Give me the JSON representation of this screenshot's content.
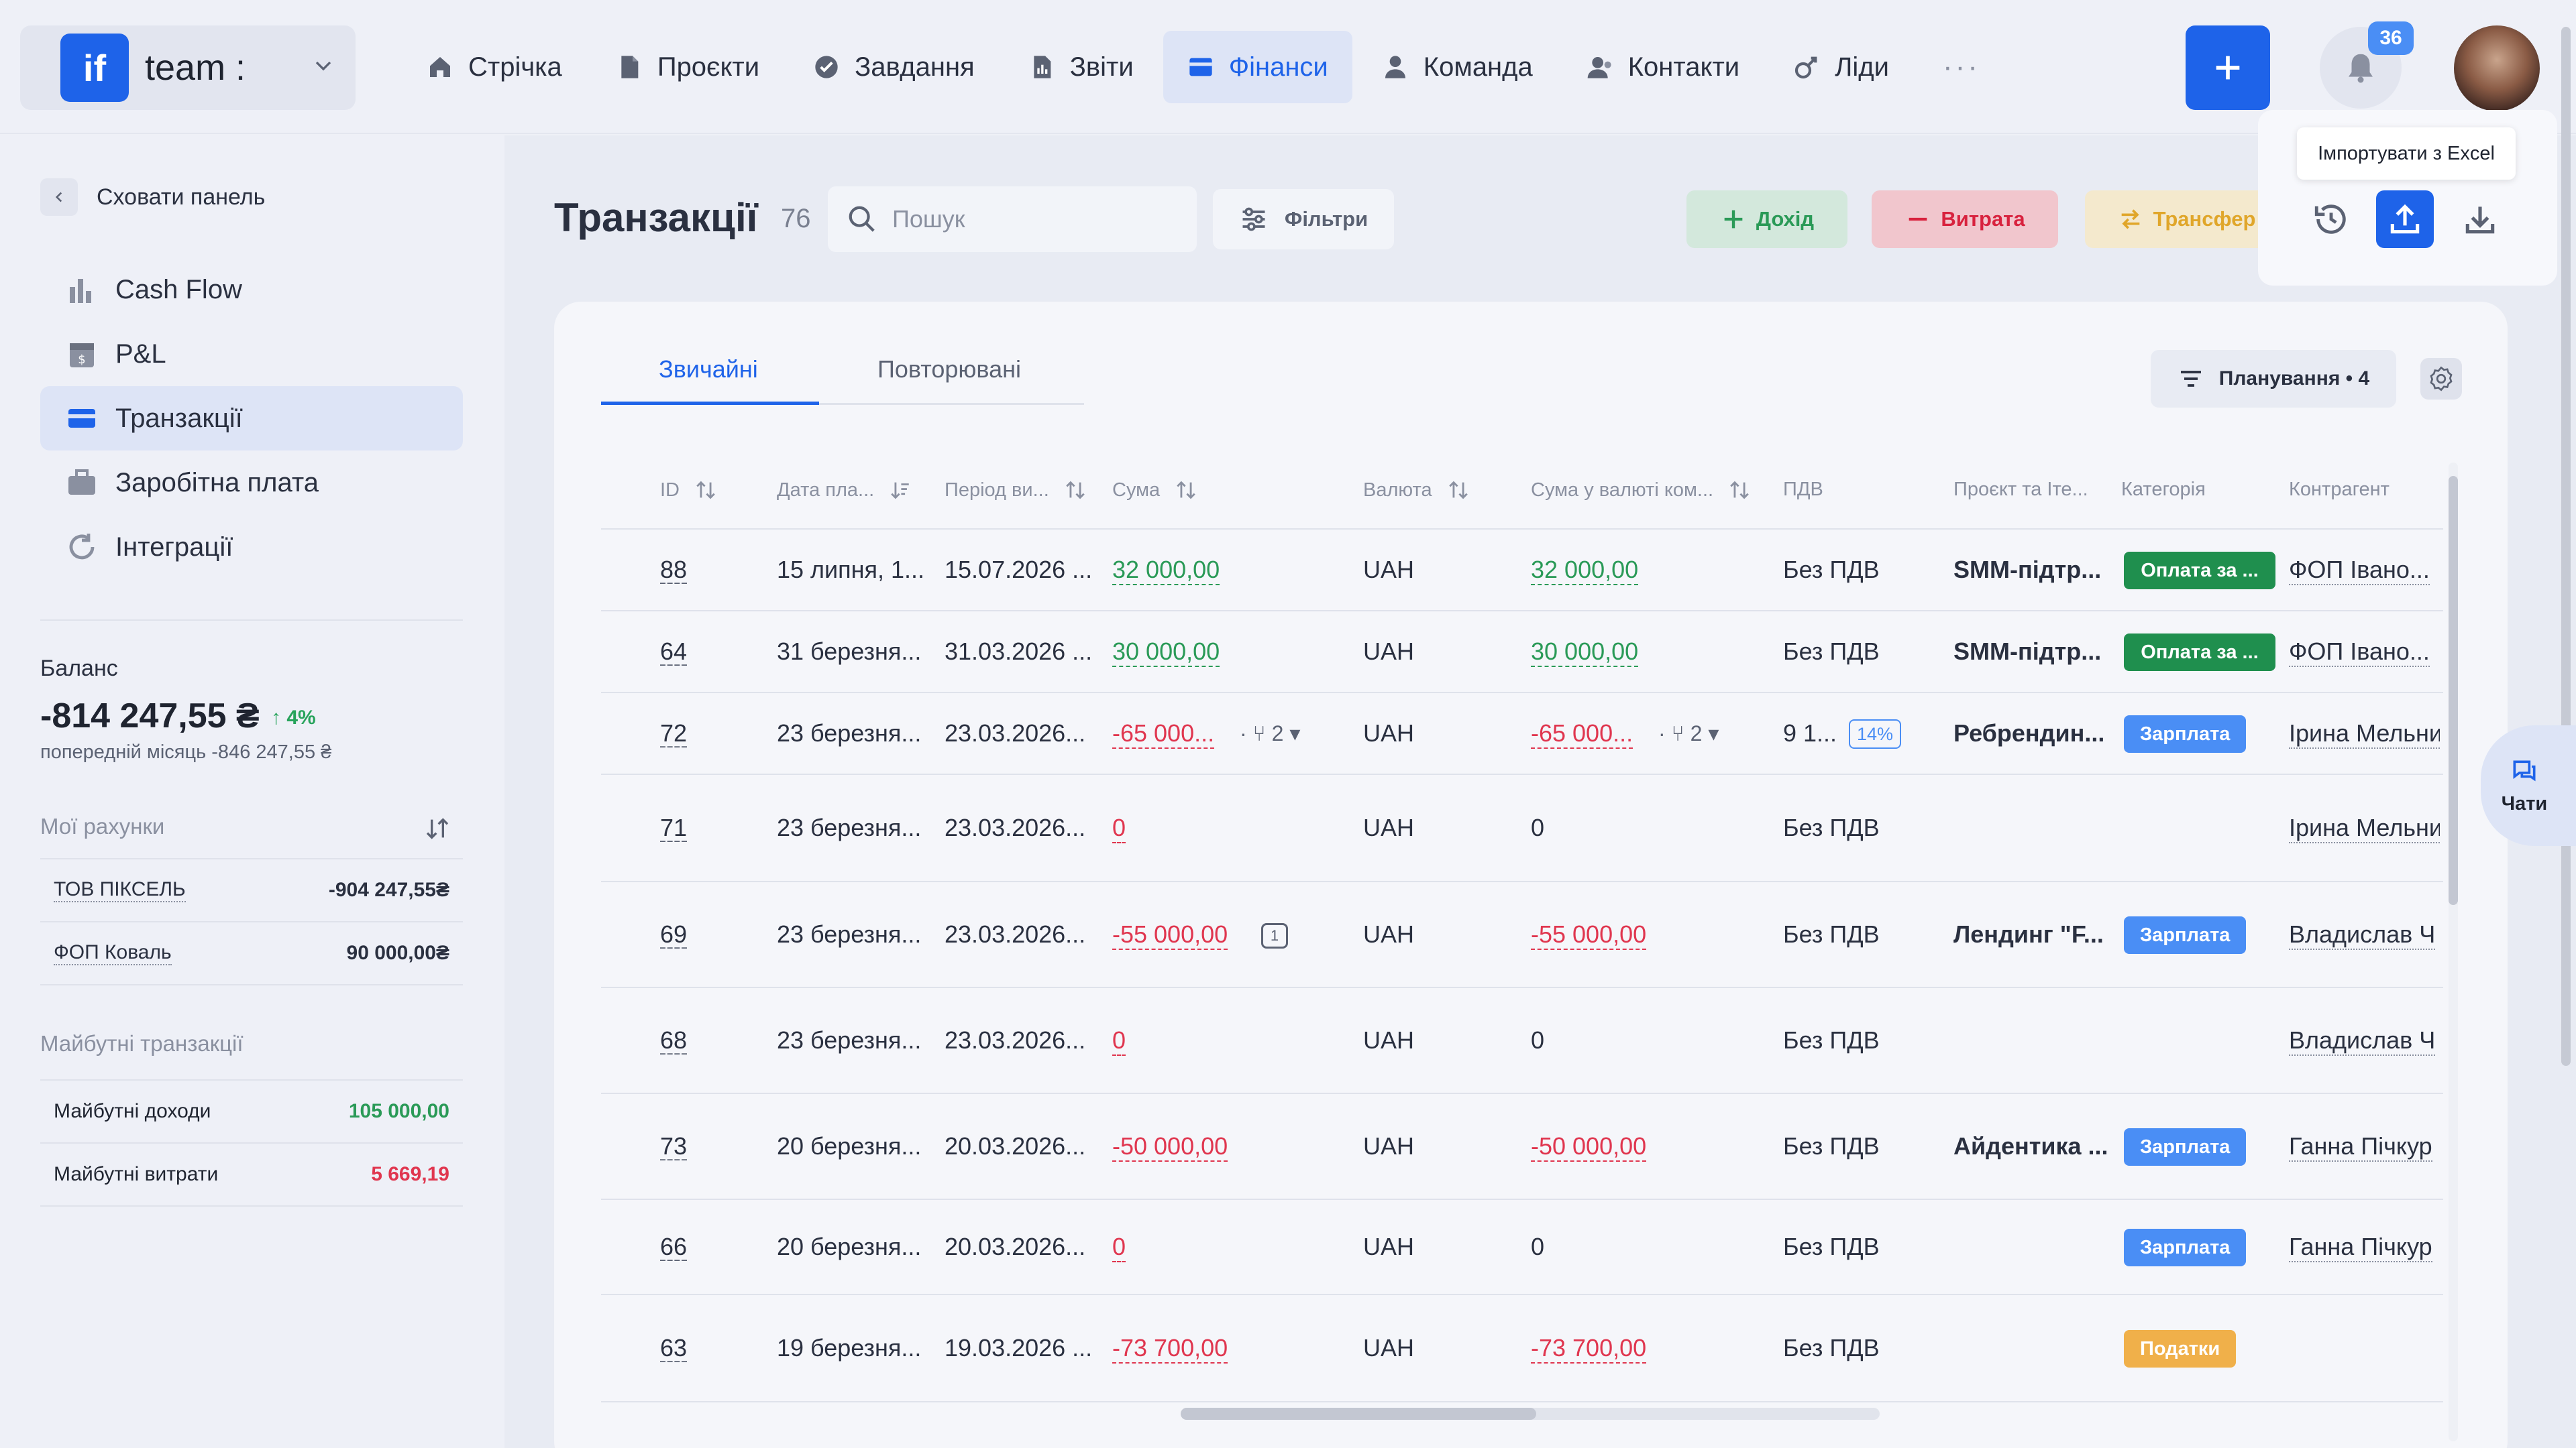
{
  "brand": {
    "logo": "if",
    "name": "team :"
  },
  "nav": [
    {
      "label": "Стрічка",
      "icon": "home-icon"
    },
    {
      "label": "Проєкти",
      "icon": "file-icon"
    },
    {
      "label": "Завдання",
      "icon": "check-circle-icon"
    },
    {
      "label": "Звіти",
      "icon": "report-icon"
    },
    {
      "label": "Фінанси",
      "icon": "wallet-icon",
      "active": true
    },
    {
      "label": "Команда",
      "icon": "person-icon"
    },
    {
      "label": "Контакти",
      "icon": "contacts-icon"
    },
    {
      "label": "Ліди",
      "icon": "leads-icon"
    }
  ],
  "nav_more": "···",
  "notifications": {
    "count": "36"
  },
  "sidebar": {
    "hide_label": "Сховати панель",
    "items": [
      {
        "label": "Cash Flow",
        "icon": "bar-chart-icon"
      },
      {
        "label": "P&L",
        "icon": "calendar-icon"
      },
      {
        "label": "Транзакції",
        "icon": "card-icon",
        "active": true
      },
      {
        "label": "Заробітна плата",
        "icon": "briefcase-icon"
      },
      {
        "label": "Інтеграції",
        "icon": "sync-icon"
      }
    ],
    "balance": {
      "label": "Баланс",
      "value": "-814 247,55 ₴",
      "change": "4%",
      "previous": "попередній місяць -846 247,55 ₴"
    },
    "accounts_label": "Мої рахунки",
    "accounts": [
      {
        "name": "ТОВ ПІКСЕЛЬ",
        "value": "-904 247,55₴"
      },
      {
        "name": "ФОП Коваль",
        "value": "90 000,00₴"
      }
    ],
    "future_label": "Майбутні транзакції",
    "future": [
      {
        "name": "Майбутні доходи",
        "value": "105 000,00"
      },
      {
        "name": "Майбутні витрати",
        "value": "5 669,19"
      }
    ]
  },
  "page": {
    "title": "Транзакції",
    "count": "76",
    "search_placeholder": "Пошук",
    "filters_label": "Фільтри",
    "income_label": "Дохід",
    "expense_label": "Витрата",
    "transfer_label": "Трансфер",
    "tooltip": "Імпортувати з Excel"
  },
  "tabs": [
    {
      "label": "Звичайні",
      "active": true
    },
    {
      "label": "Повторювані"
    }
  ],
  "planning_label": "Планування • 4",
  "table": {
    "headers": [
      "ID",
      "Дата пла...",
      "Період ви...",
      "Сума",
      "Валюта",
      "Сума у валюті ком...",
      "ПДВ",
      "Проєкт та Іте...",
      "Категорія",
      "Контрагент"
    ],
    "rows": [
      {
        "id": "88",
        "date": "15 липня, 1...",
        "period": "15.07.2026 ...",
        "amount": "32 000,00",
        "sign": "pos",
        "currency": "UAH",
        "amount_comp": "32 000,00",
        "vat": "Без ПДВ",
        "project": "SMM-підтр...",
        "category": "Оплата за ...",
        "cat_color": "green",
        "counterparty": "ФОП Івано..."
      },
      {
        "id": "64",
        "date": "31 березня...",
        "period": "31.03.2026 ...",
        "amount": "30 000,00",
        "sign": "pos",
        "currency": "UAH",
        "amount_comp": "30 000,00",
        "vat": "Без ПДВ",
        "project": "SMM-підтр...",
        "category": "Оплата за ...",
        "cat_color": "green",
        "counterparty": "ФОП Івано..."
      },
      {
        "id": "72",
        "date": "23 березня...",
        "period": "23.03.2026...",
        "amount": "-65 000...",
        "sign": "neg",
        "split": "2",
        "currency": "UAH",
        "amount_comp": "-65 000...",
        "split_comp": "2",
        "vat": "9 1...",
        "vat_pct": "14%",
        "project": "Ребрендин...",
        "category": "Зарплата",
        "cat_color": "blue",
        "counterparty": "Ірина Мельни"
      },
      {
        "id": "71",
        "date": "23 березня...",
        "period": "23.03.2026...",
        "amount": "0",
        "sign": "zero",
        "currency": "UAH",
        "amount_comp": "0",
        "vat": "Без ПДВ",
        "project": "",
        "category": "",
        "cat_color": "",
        "counterparty": "Ірина Мельни"
      },
      {
        "id": "69",
        "date": "23 березня...",
        "period": "23.03.2026...",
        "amount": "-55 000,00",
        "sign": "neg",
        "comment": "1",
        "currency": "UAH",
        "amount_comp": "-55 000,00",
        "vat": "Без ПДВ",
        "project": "Лендинг \"F...",
        "category": "Зарплата",
        "cat_color": "blue",
        "counterparty": "Владислав Ч"
      },
      {
        "id": "68",
        "date": "23 березня...",
        "period": "23.03.2026...",
        "amount": "0",
        "sign": "zero",
        "currency": "UAH",
        "amount_comp": "0",
        "vat": "Без ПДВ",
        "project": "",
        "category": "",
        "cat_color": "",
        "counterparty": "Владислав Ч"
      },
      {
        "id": "73",
        "date": "20 березня...",
        "period": "20.03.2026...",
        "amount": "-50 000,00",
        "sign": "neg",
        "currency": "UAH",
        "amount_comp": "-50 000,00",
        "vat": "Без ПДВ",
        "project": "Айдентика ...",
        "category": "Зарплата",
        "cat_color": "blue",
        "counterparty": "Ганна Пічкур"
      },
      {
        "id": "66",
        "date": "20 березня...",
        "period": "20.03.2026...",
        "amount": "0",
        "sign": "zero",
        "currency": "UAH",
        "amount_comp": "0",
        "vat": "Без ПДВ",
        "project": "",
        "category": "Зарплата",
        "cat_color": "blue",
        "counterparty": "Ганна Пічкур"
      },
      {
        "id": "63",
        "date": "19 березня...",
        "period": "19.03.2026 ...",
        "amount": "-73 700,00",
        "sign": "neg",
        "currency": "UAH",
        "amount_comp": "-73 700,00",
        "vat": "Без ПДВ",
        "project": "",
        "category": "Податки",
        "cat_color": "orange",
        "counterparty": ""
      }
    ]
  },
  "chats_label": "Чати",
  "colors": {
    "accent": "#1e63e9",
    "positive": "#2a9a57",
    "negative": "#e0364f",
    "category_green": "#1f8f4e",
    "category_blue": "#4a8ef5",
    "category_orange": "#f0b04a"
  }
}
